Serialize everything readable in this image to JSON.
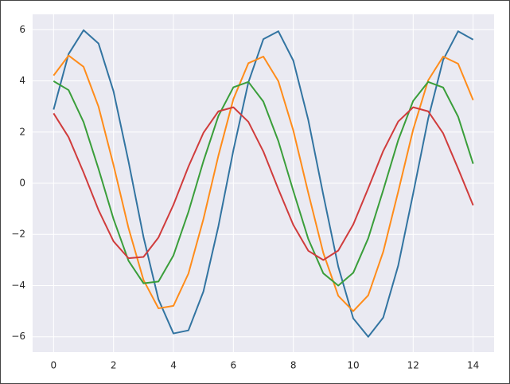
{
  "chart_data": {
    "type": "line",
    "x": [
      0,
      0.5,
      1,
      1.5,
      2,
      2.5,
      3,
      3.5,
      4,
      4.5,
      5,
      5.5,
      6,
      6.5,
      7,
      7.5,
      8,
      8.5,
      9,
      9.5,
      10,
      10.5,
      11,
      11.5,
      12,
      12.5,
      13,
      13.5,
      14
    ],
    "series": [
      {
        "color": "#3274a1",
        "values": [
          2.88,
          5.05,
          5.98,
          5.46,
          3.59,
          0.85,
          -2.1,
          -4.54,
          -5.87,
          -5.75,
          -4.23,
          -1.68,
          1.29,
          3.94,
          5.63,
          5.94,
          4.79,
          2.47,
          -0.45,
          -3.26,
          -5.28,
          -6.0,
          -5.25,
          -3.22,
          -0.4,
          2.52,
          4.82,
          5.94,
          5.61
        ]
      },
      {
        "color": "#ff8c1a",
        "values": [
          4.21,
          4.99,
          4.55,
          2.99,
          0.71,
          -1.75,
          -3.78,
          -4.89,
          -4.79,
          -3.53,
          -1.4,
          1.08,
          3.29,
          4.69,
          4.95,
          3.99,
          2.06,
          -0.38,
          -2.72,
          -4.4,
          -5.0,
          -4.38,
          -2.68,
          -0.33,
          2.1,
          4.02,
          4.95,
          4.67,
          3.25
        ]
      },
      {
        "color": "#3a9e3a",
        "values": [
          3.99,
          3.64,
          2.39,
          0.56,
          -1.4,
          -3.03,
          -3.91,
          -3.84,
          -2.82,
          -1.12,
          0.86,
          2.63,
          3.75,
          3.96,
          3.19,
          1.65,
          -0.3,
          -2.18,
          -3.52,
          -4.0,
          -3.5,
          -2.15,
          -0.27,
          1.68,
          3.22,
          3.96,
          3.74,
          2.6,
          0.76
        ]
      },
      {
        "color": "#d03c3c",
        "values": [
          2.73,
          1.8,
          0.42,
          -1.05,
          -2.27,
          -2.93,
          -2.88,
          -2.12,
          -0.84,
          0.65,
          1.97,
          2.81,
          2.97,
          2.4,
          1.24,
          -0.23,
          -1.63,
          -2.64,
          -3.0,
          -2.63,
          -1.61,
          -0.2,
          1.26,
          2.41,
          2.97,
          2.81,
          1.95,
          0.57,
          -0.86
        ]
      }
    ],
    "xlim": [
      -0.7,
      14.7
    ],
    "ylim": [
      -6.6,
      6.6
    ],
    "xticks": [
      0,
      2,
      4,
      6,
      8,
      10,
      12,
      14
    ],
    "yticks": [
      {
        "value": -6,
        "label": "−6"
      },
      {
        "value": -4,
        "label": "−4"
      },
      {
        "value": -2,
        "label": "−2"
      },
      0,
      2,
      4,
      6
    ],
    "grid": true
  }
}
